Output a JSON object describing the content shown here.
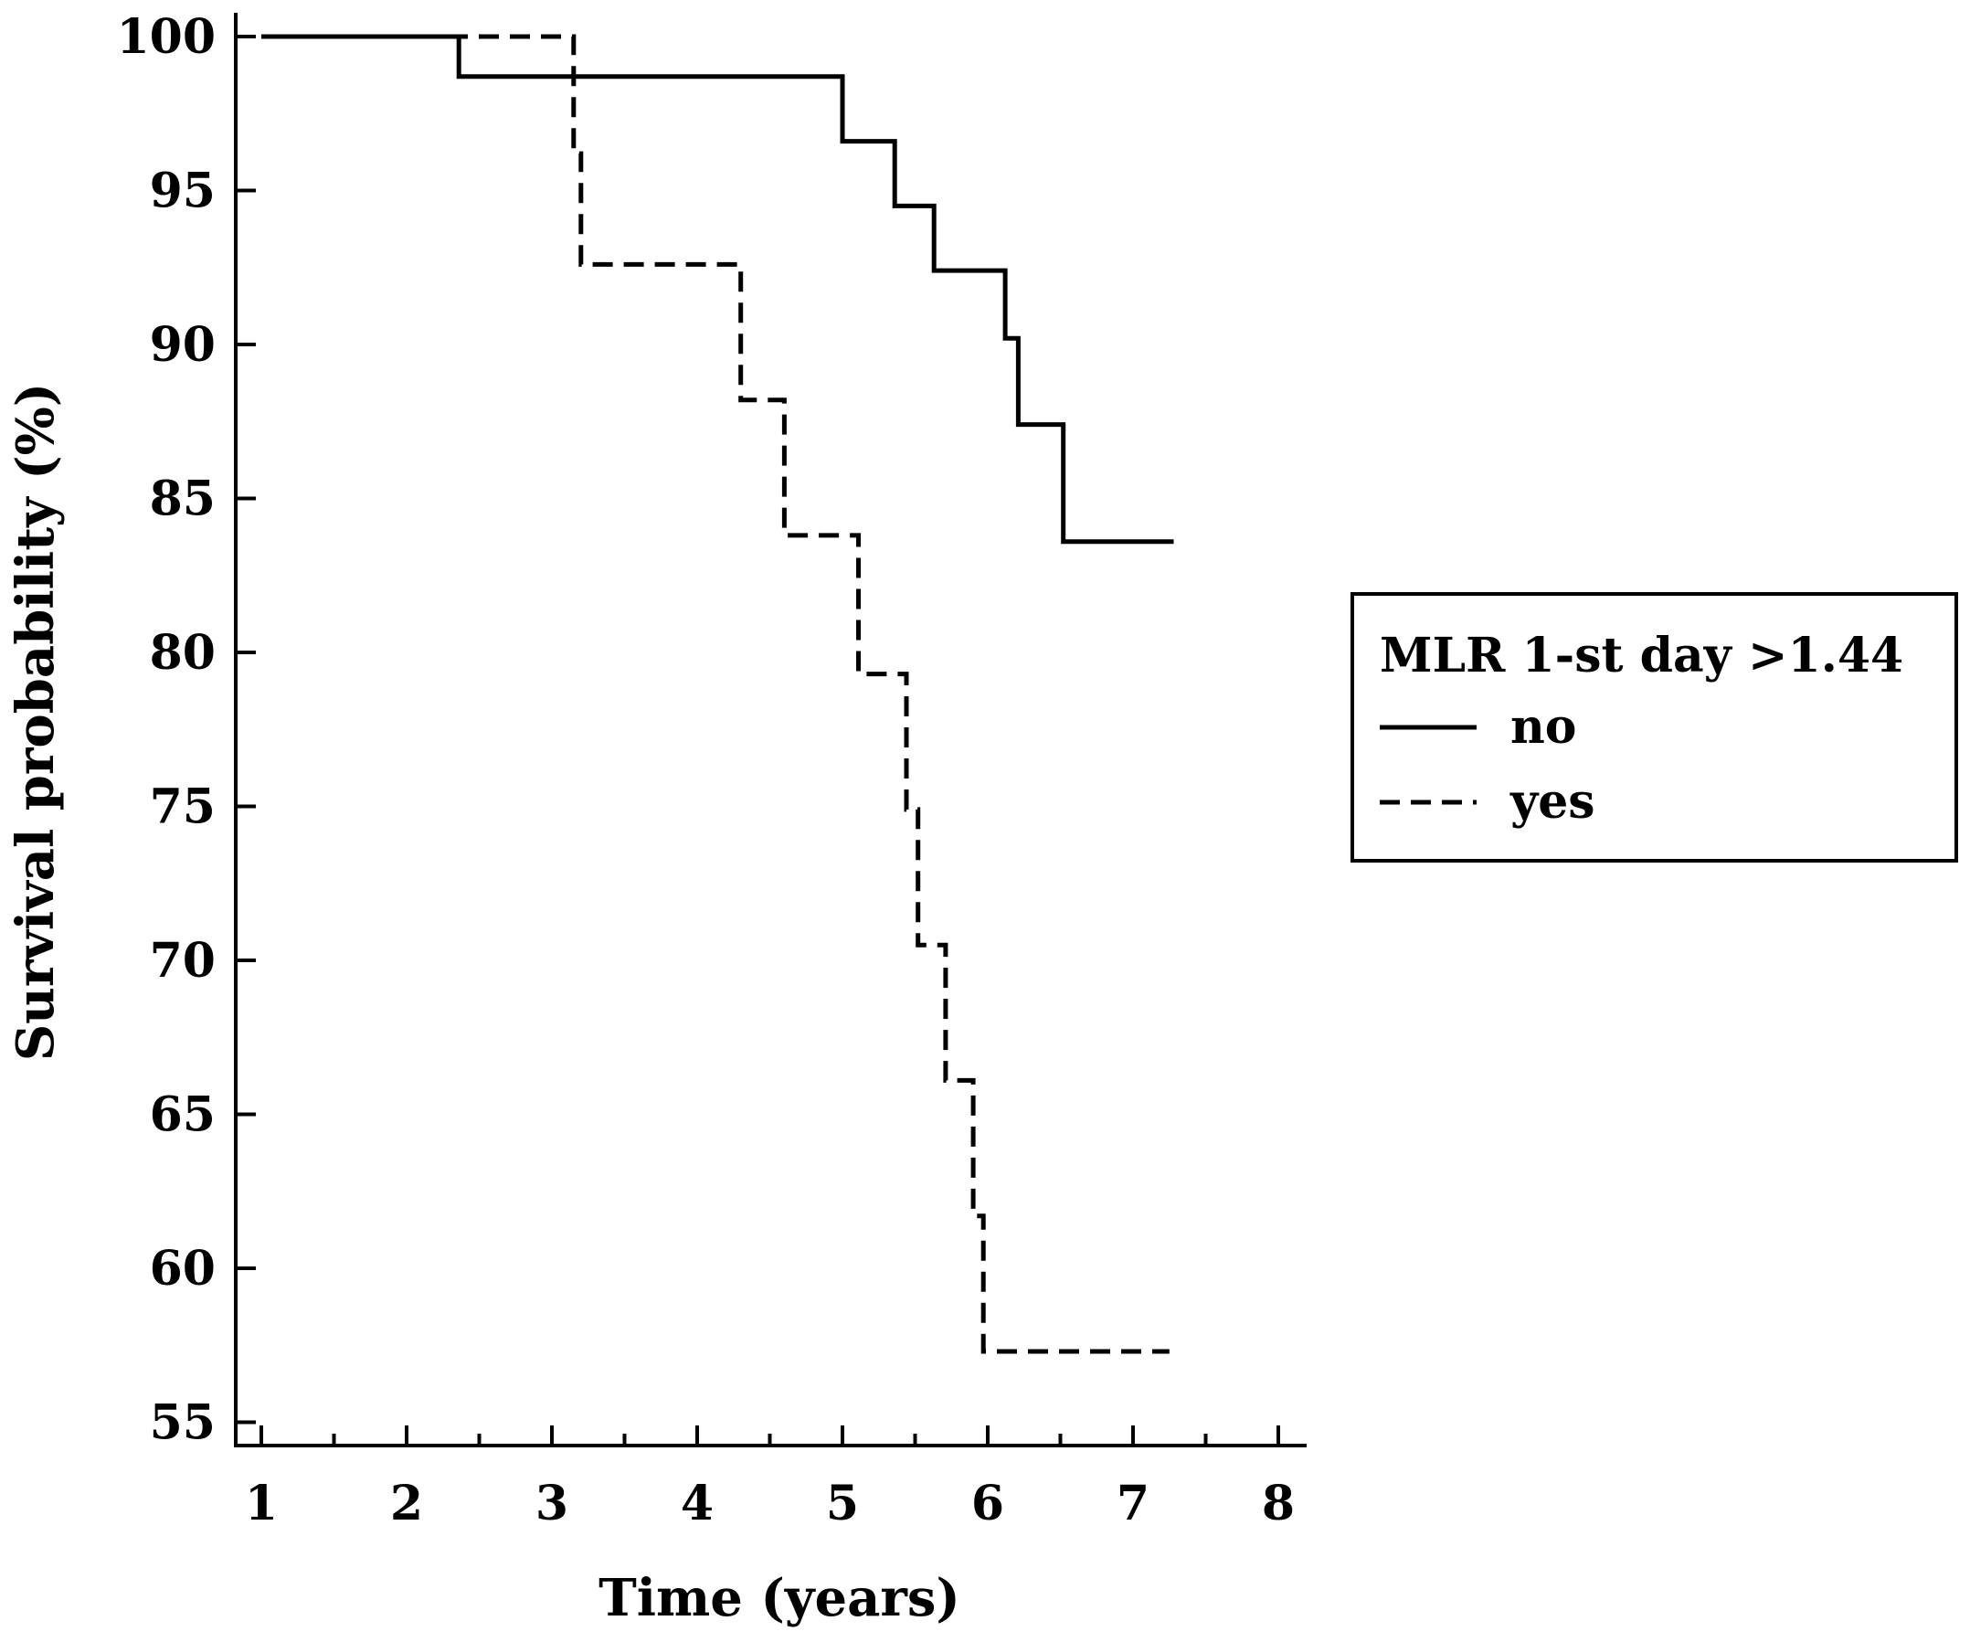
{
  "chart_data": {
    "type": "line",
    "style": "step",
    "xlabel": "Time (years)",
    "ylabel": "Survival probability (%)",
    "xlim": [
      1,
      8
    ],
    "ylim": [
      55,
      100
    ],
    "xticks": [
      1,
      2,
      3,
      4,
      5,
      6,
      7,
      8
    ],
    "xtick_labels": [
      "1",
      "2",
      "3",
      "4",
      "5",
      "6",
      "7",
      "8"
    ],
    "yticks": [
      55,
      60,
      65,
      70,
      75,
      80,
      85,
      90,
      95,
      100
    ],
    "ytick_labels": [
      "55",
      "60",
      "65",
      "70",
      "75",
      "80",
      "85",
      "90",
      "95",
      "100"
    ],
    "grid": false,
    "legend": {
      "title": "MLR 1-st day >1.44",
      "position": "right"
    },
    "series": [
      {
        "name": "no",
        "line_style": "solid",
        "color": "#000000",
        "x": [
          1.0,
          2.36,
          5.0,
          5.36,
          5.63,
          6.12,
          6.21,
          6.52,
          7.28
        ],
        "y": [
          100,
          98.7,
          96.6,
          94.5,
          92.4,
          90.2,
          87.4,
          83.6,
          83.6
        ]
      },
      {
        "name": "yes",
        "line_style": "dashed",
        "color": "#000000",
        "x": [
          1.0,
          3.15,
          3.2,
          4.3,
          4.6,
          5.11,
          5.44,
          5.52,
          5.71,
          5.9,
          5.97,
          7.25
        ],
        "y": [
          100,
          96.2,
          92.6,
          88.2,
          83.8,
          79.3,
          74.9,
          70.5,
          66.1,
          61.7,
          57.3,
          57.3
        ]
      }
    ]
  }
}
